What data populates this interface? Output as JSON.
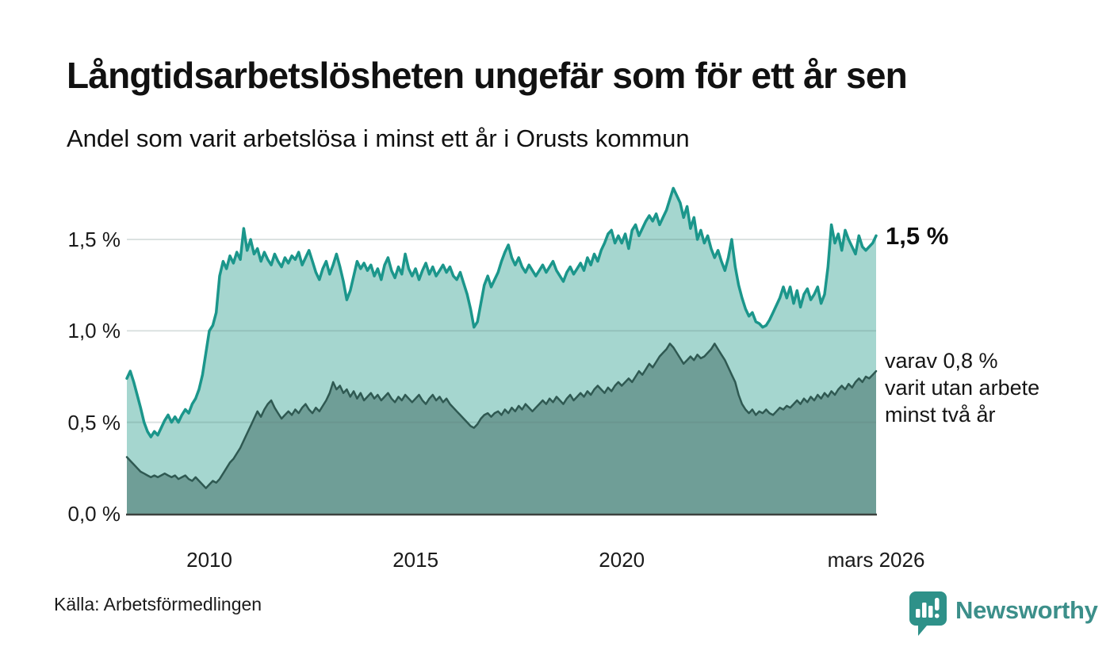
{
  "header": {
    "title": "Långtidsarbetslösheten ungefär som för ett år sen",
    "subtitle": "Andel som varit arbetslösa i minst ett år i Orusts kommun"
  },
  "chart_data": {
    "type": "area",
    "title": "Andel som varit arbetslösa i minst ett år i Orusts kommun",
    "unit": "%",
    "x_start": "2008-01",
    "x_end": "2026-03",
    "frequency": "monthly",
    "ylim": [
      0,
      1.85
    ],
    "grid": "horizontal",
    "legend_position": "annotated-right",
    "y_ticks": [
      {
        "value": 1.5,
        "label": "1,5 %"
      },
      {
        "value": 1.0,
        "label": "1,0 %"
      },
      {
        "value": 0.5,
        "label": "0,5 %"
      },
      {
        "value": 0.0,
        "label": "0,0 %"
      }
    ],
    "x_ticks": [
      {
        "index": 24,
        "label": "2010"
      },
      {
        "index": 84,
        "label": "2015"
      },
      {
        "index": 144,
        "label": "2020"
      },
      {
        "index": 218,
        "label": "mars 2026"
      }
    ],
    "series": [
      {
        "name": "Andel som varit arbetslösa i minst ett år",
        "line_color": "#1b968b",
        "fill_color": "#a5d6cf",
        "line_width": 3.5,
        "last_value": 1.52,
        "values": [
          0.74,
          0.78,
          0.72,
          0.65,
          0.58,
          0.5,
          0.45,
          0.42,
          0.45,
          0.43,
          0.47,
          0.51,
          0.54,
          0.5,
          0.53,
          0.5,
          0.54,
          0.57,
          0.55,
          0.6,
          0.63,
          0.68,
          0.76,
          0.88,
          1.0,
          1.03,
          1.1,
          1.3,
          1.38,
          1.34,
          1.41,
          1.37,
          1.43,
          1.39,
          1.56,
          1.44,
          1.5,
          1.42,
          1.45,
          1.38,
          1.43,
          1.39,
          1.36,
          1.42,
          1.38,
          1.35,
          1.4,
          1.37,
          1.41,
          1.39,
          1.43,
          1.36,
          1.4,
          1.44,
          1.38,
          1.32,
          1.28,
          1.34,
          1.38,
          1.31,
          1.36,
          1.42,
          1.35,
          1.27,
          1.17,
          1.22,
          1.3,
          1.38,
          1.34,
          1.37,
          1.33,
          1.36,
          1.3,
          1.34,
          1.28,
          1.36,
          1.4,
          1.33,
          1.29,
          1.35,
          1.31,
          1.42,
          1.34,
          1.3,
          1.34,
          1.28,
          1.33,
          1.37,
          1.31,
          1.35,
          1.3,
          1.33,
          1.36,
          1.32,
          1.35,
          1.3,
          1.28,
          1.32,
          1.26,
          1.2,
          1.12,
          1.02,
          1.05,
          1.15,
          1.25,
          1.3,
          1.24,
          1.28,
          1.32,
          1.38,
          1.43,
          1.47,
          1.4,
          1.36,
          1.4,
          1.35,
          1.32,
          1.36,
          1.33,
          1.3,
          1.33,
          1.36,
          1.32,
          1.35,
          1.38,
          1.33,
          1.3,
          1.27,
          1.32,
          1.35,
          1.31,
          1.34,
          1.37,
          1.33,
          1.4,
          1.36,
          1.42,
          1.38,
          1.44,
          1.48,
          1.53,
          1.55,
          1.48,
          1.52,
          1.48,
          1.53,
          1.45,
          1.55,
          1.58,
          1.52,
          1.56,
          1.6,
          1.63,
          1.6,
          1.64,
          1.58,
          1.62,
          1.66,
          1.72,
          1.78,
          1.74,
          1.7,
          1.62,
          1.68,
          1.56,
          1.62,
          1.5,
          1.55,
          1.48,
          1.52,
          1.45,
          1.4,
          1.44,
          1.38,
          1.33,
          1.4,
          1.5,
          1.35,
          1.25,
          1.18,
          1.12,
          1.08,
          1.1,
          1.05,
          1.04,
          1.02,
          1.03,
          1.06,
          1.1,
          1.14,
          1.18,
          1.24,
          1.18,
          1.24,
          1.15,
          1.22,
          1.13,
          1.2,
          1.23,
          1.17,
          1.2,
          1.24,
          1.15,
          1.2,
          1.35,
          1.58,
          1.48,
          1.53,
          1.44,
          1.55,
          1.5,
          1.46,
          1.42,
          1.52,
          1.46,
          1.44,
          1.46,
          1.48,
          1.52
        ]
      },
      {
        "name": "varav utan arbete minst två år",
        "line_color": "#2f5952",
        "fill_color": "#6f9e97",
        "line_width": 2.5,
        "last_value": 0.78,
        "values": [
          0.31,
          0.29,
          0.27,
          0.25,
          0.23,
          0.22,
          0.21,
          0.2,
          0.21,
          0.2,
          0.21,
          0.22,
          0.21,
          0.2,
          0.21,
          0.19,
          0.2,
          0.21,
          0.19,
          0.18,
          0.2,
          0.18,
          0.16,
          0.14,
          0.16,
          0.18,
          0.17,
          0.19,
          0.22,
          0.25,
          0.28,
          0.3,
          0.33,
          0.36,
          0.4,
          0.44,
          0.48,
          0.52,
          0.56,
          0.53,
          0.57,
          0.6,
          0.62,
          0.58,
          0.55,
          0.52,
          0.54,
          0.56,
          0.54,
          0.57,
          0.55,
          0.58,
          0.6,
          0.57,
          0.55,
          0.58,
          0.56,
          0.59,
          0.62,
          0.66,
          0.72,
          0.68,
          0.7,
          0.66,
          0.68,
          0.64,
          0.67,
          0.63,
          0.66,
          0.62,
          0.64,
          0.66,
          0.63,
          0.65,
          0.62,
          0.64,
          0.66,
          0.63,
          0.61,
          0.64,
          0.62,
          0.65,
          0.63,
          0.61,
          0.63,
          0.65,
          0.62,
          0.6,
          0.63,
          0.65,
          0.62,
          0.64,
          0.61,
          0.63,
          0.6,
          0.58,
          0.56,
          0.54,
          0.52,
          0.5,
          0.48,
          0.47,
          0.49,
          0.52,
          0.54,
          0.55,
          0.53,
          0.55,
          0.56,
          0.54,
          0.57,
          0.55,
          0.58,
          0.56,
          0.59,
          0.57,
          0.6,
          0.58,
          0.56,
          0.58,
          0.6,
          0.62,
          0.6,
          0.63,
          0.61,
          0.64,
          0.62,
          0.6,
          0.63,
          0.65,
          0.62,
          0.64,
          0.66,
          0.64,
          0.67,
          0.65,
          0.68,
          0.7,
          0.68,
          0.66,
          0.69,
          0.67,
          0.7,
          0.72,
          0.7,
          0.72,
          0.74,
          0.72,
          0.75,
          0.78,
          0.76,
          0.79,
          0.82,
          0.8,
          0.83,
          0.86,
          0.88,
          0.9,
          0.93,
          0.91,
          0.88,
          0.85,
          0.82,
          0.84,
          0.86,
          0.84,
          0.87,
          0.85,
          0.86,
          0.88,
          0.9,
          0.93,
          0.9,
          0.87,
          0.84,
          0.8,
          0.76,
          0.72,
          0.65,
          0.6,
          0.57,
          0.55,
          0.57,
          0.54,
          0.56,
          0.55,
          0.57,
          0.55,
          0.54,
          0.56,
          0.58,
          0.57,
          0.59,
          0.58,
          0.6,
          0.62,
          0.6,
          0.63,
          0.61,
          0.64,
          0.62,
          0.65,
          0.63,
          0.66,
          0.64,
          0.67,
          0.65,
          0.68,
          0.7,
          0.68,
          0.71,
          0.69,
          0.72,
          0.74,
          0.72,
          0.75,
          0.74,
          0.76,
          0.78
        ]
      }
    ],
    "annotations": {
      "last_value_label": "1,5 %",
      "subset_label": "varav 0,8 %\nvarit utan arbete\nminst två år"
    }
  },
  "layout_colors": {
    "gridline": "#5a7a76",
    "axis_line": "#3d423f",
    "background": "#ffffff",
    "brand_teal": "#2e9189"
  },
  "footer": {
    "source": "Källa: Arbetsförmedlingen",
    "brand": "Newsworthy"
  }
}
